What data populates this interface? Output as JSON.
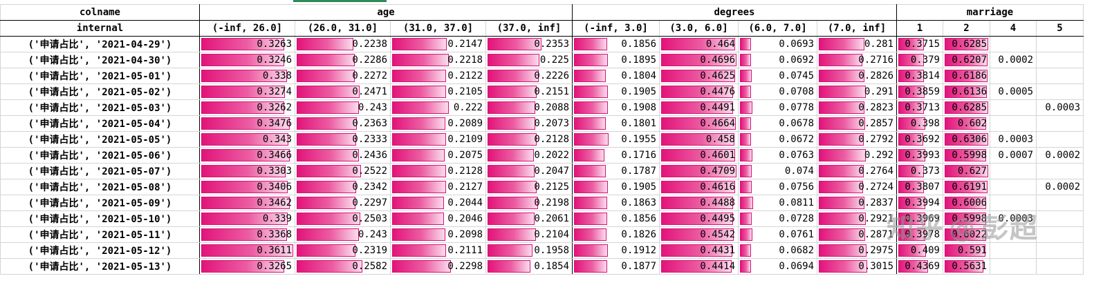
{
  "colors": {
    "bar_start": "#e2147a",
    "bar_end": "#fbdced",
    "grid": "#d4d4d4",
    "selected_col_marker": "#2e8b57"
  },
  "header": {
    "colname_label": "colname",
    "internal_label": "internal",
    "groups": [
      {
        "name": "age",
        "bins": [
          "(-inf, 26.0]",
          "(26.0, 31.0]",
          "(31.0, 37.0]",
          "(37.0, inf]"
        ]
      },
      {
        "name": "degrees",
        "bins": [
          "(-inf, 3.0]",
          "(3.0, 6.0]",
          "(6.0, 7.0]",
          "(7.0, inf]"
        ]
      },
      {
        "name": "marriage",
        "bins": [
          "1",
          "2",
          "4",
          "5"
        ]
      }
    ]
  },
  "rows": [
    {
      "label": "('申请占比', '2021-04-29')",
      "age": [
        0.3263,
        0.2238,
        0.2147,
        0.2353
      ],
      "degrees": [
        0.1856,
        0.464,
        0.0693,
        0.281
      ],
      "marriage": [
        0.3715,
        0.6285,
        null,
        null
      ]
    },
    {
      "label": "('申请占比', '2021-04-30')",
      "age": [
        0.3246,
        0.2286,
        0.2218,
        0.225
      ],
      "degrees": [
        0.1895,
        0.4696,
        0.0692,
        0.2716
      ],
      "marriage": [
        0.379,
        0.6207,
        0.0002,
        null
      ]
    },
    {
      "label": "('申请占比', '2021-05-01')",
      "age": [
        0.338,
        0.2272,
        0.2122,
        0.2226
      ],
      "degrees": [
        0.1804,
        0.4625,
        0.0745,
        0.2826
      ],
      "marriage": [
        0.3814,
        0.6186,
        null,
        null
      ]
    },
    {
      "label": "('申请占比', '2021-05-02')",
      "age": [
        0.3274,
        0.2471,
        0.2105,
        0.2151
      ],
      "degrees": [
        0.1905,
        0.4476,
        0.0708,
        0.291
      ],
      "marriage": [
        0.3859,
        0.6136,
        0.0005,
        null
      ]
    },
    {
      "label": "('申请占比', '2021-05-03')",
      "age": [
        0.3262,
        0.243,
        0.222,
        0.2088
      ],
      "degrees": [
        0.1908,
        0.4491,
        0.0778,
        0.2823
      ],
      "marriage": [
        0.3713,
        0.6285,
        null,
        0.0003
      ]
    },
    {
      "label": "('申请占比', '2021-05-04')",
      "age": [
        0.3476,
        0.2363,
        0.2089,
        0.2073
      ],
      "degrees": [
        0.1801,
        0.4664,
        0.0678,
        0.2857
      ],
      "marriage": [
        0.398,
        0.602,
        null,
        null
      ]
    },
    {
      "label": "('申请占比', '2021-05-05')",
      "age": [
        0.343,
        0.2333,
        0.2109,
        0.2128
      ],
      "degrees": [
        0.1955,
        0.458,
        0.0672,
        0.2792
      ],
      "marriage": [
        0.3692,
        0.6306,
        0.0003,
        null
      ]
    },
    {
      "label": "('申请占比', '2021-05-06')",
      "age": [
        0.3466,
        0.2436,
        0.2075,
        0.2022
      ],
      "degrees": [
        0.1716,
        0.4601,
        0.0763,
        0.292
      ],
      "marriage": [
        0.3993,
        0.5998,
        0.0007,
        0.0002
      ]
    },
    {
      "label": "('申请占比', '2021-05-07')",
      "age": [
        0.3303,
        0.2522,
        0.2128,
        0.2047
      ],
      "degrees": [
        0.1787,
        0.4709,
        0.074,
        0.2764
      ],
      "marriage": [
        0.373,
        0.627,
        null,
        null
      ]
    },
    {
      "label": "('申请占比', '2021-05-08')",
      "age": [
        0.3406,
        0.2342,
        0.2127,
        0.2125
      ],
      "degrees": [
        0.1905,
        0.4616,
        0.0756,
        0.2724
      ],
      "marriage": [
        0.3807,
        0.6191,
        null,
        0.0002
      ]
    },
    {
      "label": "('申请占比', '2021-05-09')",
      "age": [
        0.3462,
        0.2297,
        0.2044,
        0.2198
      ],
      "degrees": [
        0.1863,
        0.4488,
        0.0811,
        0.2837
      ],
      "marriage": [
        0.3994,
        0.6006,
        null,
        null
      ]
    },
    {
      "label": "('申请占比', '2021-05-10')",
      "age": [
        0.339,
        0.2503,
        0.2046,
        0.2061
      ],
      "degrees": [
        0.1856,
        0.4495,
        0.0728,
        0.2921
      ],
      "marriage": [
        0.3969,
        0.5998,
        0.0003,
        null
      ]
    },
    {
      "label": "('申请占比', '2021-05-11')",
      "age": [
        0.3368,
        0.243,
        0.2098,
        0.2104
      ],
      "degrees": [
        0.1826,
        0.4542,
        0.0761,
        0.2871
      ],
      "marriage": [
        0.3978,
        0.6022,
        null,
        null
      ]
    },
    {
      "label": "('申请占比', '2021-05-12')",
      "age": [
        0.3611,
        0.2319,
        0.2111,
        0.1958
      ],
      "degrees": [
        0.1912,
        0.4431,
        0.0682,
        0.2975
      ],
      "marriage": [
        0.409,
        0.591,
        null,
        null
      ]
    },
    {
      "label": "('申请占比', '2021-05-13')",
      "age": [
        0.3265,
        0.2582,
        0.2298,
        0.1854
      ],
      "degrees": [
        0.1877,
        0.4414,
        0.0694,
        0.3015
      ],
      "marriage": [
        0.4369,
        0.5631,
        null,
        null
      ]
    }
  ],
  "watermark": {
    "logo": "知乎",
    "at": "@",
    "author": "彭超"
  }
}
